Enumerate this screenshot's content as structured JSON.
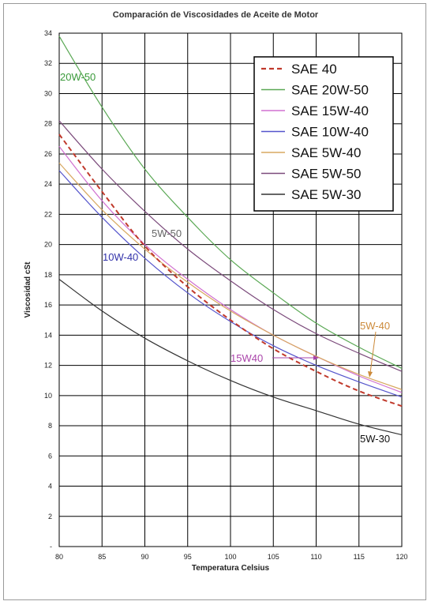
{
  "chart_data": {
    "type": "line",
    "title": "Comparación de Viscosidades de Aceite de Motor",
    "xlabel": "Temperatura Celsius",
    "ylabel": "Viscosidad cSt",
    "xlim": [
      80,
      120
    ],
    "ylim": [
      0,
      34
    ],
    "x_ticks": [
      "80",
      "85",
      "90",
      "95",
      "100",
      "105",
      "110",
      "115",
      "120"
    ],
    "y_ticks": [
      "-",
      "2",
      "4",
      "6",
      "8",
      "10",
      "12",
      "14",
      "16",
      "18",
      "20",
      "22",
      "24",
      "26",
      "28",
      "30",
      "32",
      "34"
    ],
    "grid": true,
    "legend_position": "top-right",
    "x": [
      80,
      85,
      90,
      95,
      100,
      105,
      110,
      115,
      120
    ],
    "series": [
      {
        "name": "SAE 40",
        "color": "#c0392b",
        "dashed": true,
        "values": [
          27.3,
          23.5,
          19.9,
          17.2,
          15.0,
          13.1,
          11.6,
          10.3,
          9.3
        ]
      },
      {
        "name": "SAE 20W-50",
        "color": "#5aa854",
        "dashed": false,
        "values": [
          33.8,
          29.1,
          25.0,
          21.8,
          19.0,
          16.8,
          14.8,
          13.2,
          11.8
        ]
      },
      {
        "name": "SAE 15W-40",
        "color": "#d070d0",
        "dashed": false,
        "values": [
          26.5,
          22.9,
          20.0,
          17.7,
          15.7,
          14.0,
          12.6,
          11.3,
          10.2
        ]
      },
      {
        "name": "SAE 10W-40",
        "color": "#5555cc",
        "dashed": false,
        "values": [
          24.9,
          21.8,
          19.1,
          16.8,
          14.9,
          13.3,
          12.0,
          10.9,
          9.9
        ]
      },
      {
        "name": "SAE 5W-40",
        "color": "#d8a860",
        "dashed": false,
        "values": [
          25.4,
          22.3,
          19.7,
          17.5,
          15.6,
          14.0,
          12.6,
          11.4,
          10.4
        ]
      },
      {
        "name": "SAE 5W-50",
        "color": "#7b4a7b",
        "dashed": false,
        "values": [
          28.2,
          25.0,
          22.2,
          19.7,
          17.6,
          15.7,
          14.1,
          12.8,
          11.6
        ]
      },
      {
        "name": "SAE 5W-30",
        "color": "#333333",
        "dashed": false,
        "values": [
          17.7,
          15.6,
          13.8,
          12.3,
          11.0,
          9.9,
          9.0,
          8.1,
          7.4
        ]
      }
    ],
    "annotations": [
      {
        "text": "20W-50",
        "color": "#3a9a3a"
      },
      {
        "text": "5W-50",
        "color": "#666666"
      },
      {
        "text": "10W-40",
        "color": "#3333aa"
      },
      {
        "text": "15W40",
        "color": "#aa44aa"
      },
      {
        "text": "5W-40",
        "color": "#cc8a3a"
      },
      {
        "text": "5W-30",
        "color": "#111111"
      }
    ]
  }
}
